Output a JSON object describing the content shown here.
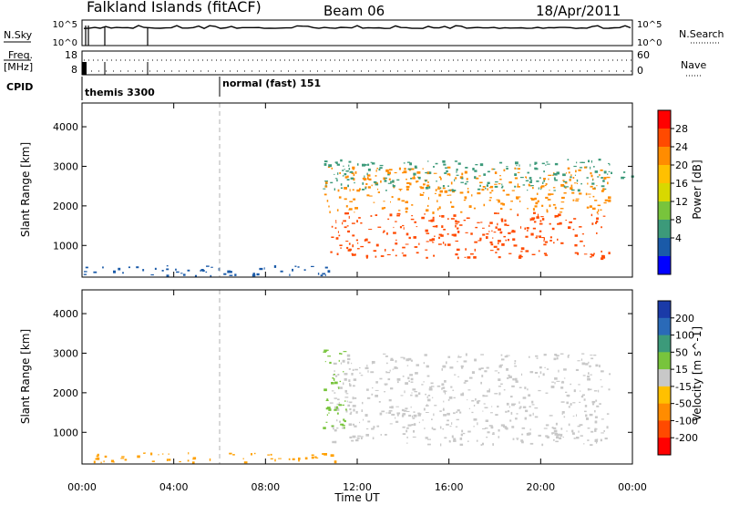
{
  "header": {
    "station": "Falkland Islands (fitACF)",
    "beam": "Beam 06",
    "date": "18/Apr/2011"
  },
  "panels": {
    "nsky_label": "N.Sky",
    "nsearch_label": "N.Search",
    "nsky_ticks": [
      "10^5",
      "10^0"
    ],
    "nsearch_ticks": [
      "10^5",
      "10^0"
    ],
    "freq_label": "Freq.",
    "freq_unit": "[MHz]",
    "freq_ticks": [
      "18",
      "8"
    ],
    "nave_label": "Nave",
    "nave_ticks": [
      "60",
      "0"
    ],
    "cpid_label": "CPID",
    "cpid_segments": [
      "themis 3300",
      "normal (fast) 151"
    ]
  },
  "chart_data": [
    {
      "type": "heatmap",
      "name": "power",
      "xlabel": "",
      "ylabel": "Slant Range [km]",
      "x_ticks": [
        "00:00",
        "04:00",
        "08:00",
        "12:00",
        "16:00",
        "20:00",
        "00:00"
      ],
      "xlim_hours": [
        0,
        24
      ],
      "ylim": [
        200,
        4600
      ],
      "y_ticks": [
        1000,
        2000,
        3000,
        4000
      ],
      "colorbar_label": "Power [dB]",
      "colorbar_ticks": [
        "28",
        "24",
        "20",
        "16",
        "12",
        "8",
        "4"
      ],
      "colorbar_colors": [
        "#ff0000",
        "#ff4a00",
        "#ff8c00",
        "#ffc000",
        "#d8d800",
        "#78c43c",
        "#3c9a7a",
        "#1a5aa8",
        "#0000ff"
      ],
      "colors": {
        "strong": "#ff4a00",
        "medium": "#ff8c00",
        "weak": "#d8d800",
        "faint": "#3c9a7a",
        "edge": "#1a5aa8"
      },
      "regions": [
        {
          "t_start": 10.8,
          "t_end": 23.0,
          "r_low": 700,
          "r_high": 1850,
          "level": "strong"
        },
        {
          "t_start": 10.5,
          "t_end": 23.0,
          "r_low": 1850,
          "r_high": 3000,
          "level": "medium"
        },
        {
          "t_start": 10.5,
          "t_end": 23.0,
          "r_low": 2400,
          "r_high": 3200,
          "level": "faint"
        },
        {
          "t_start": 23.0,
          "t_end": 24.0,
          "r_low": 2600,
          "r_high": 2900,
          "level": "faint"
        },
        {
          "t_start": 0.0,
          "t_end": 11.0,
          "r_low": 250,
          "r_high": 500,
          "level": "edge"
        }
      ]
    },
    {
      "type": "heatmap",
      "name": "velocity",
      "xlabel": "Time UT",
      "ylabel": "Slant Range [km]",
      "x_ticks": [
        "00:00",
        "04:00",
        "08:00",
        "12:00",
        "16:00",
        "20:00",
        "00:00"
      ],
      "xlim_hours": [
        0,
        24
      ],
      "ylim": [
        200,
        4600
      ],
      "y_ticks": [
        1000,
        2000,
        3000,
        4000
      ],
      "colorbar_label": "Velocity [m s^-1]",
      "colorbar_ticks": [
        "200",
        "100",
        "50",
        "15",
        "-15",
        "-50",
        "-100",
        "-200"
      ],
      "colorbar_colors": [
        "#1a3aa8",
        "#2a6ab8",
        "#3c9a7a",
        "#78c43c",
        "#c8c8c8",
        "#ffc000",
        "#ff8c00",
        "#ff4a00",
        "#ff0000"
      ],
      "colors": {
        "ground": "#c8c8c8",
        "positive": "#78c43c",
        "negative": "#ffa000"
      },
      "regions": [
        {
          "t_start": 10.8,
          "t_end": 23.0,
          "r_low": 700,
          "r_high": 3000,
          "level": "ground"
        },
        {
          "t_start": 10.5,
          "t_end": 11.5,
          "r_low": 1000,
          "r_high": 3200,
          "level": "positive"
        },
        {
          "t_start": 0.0,
          "t_end": 11.0,
          "r_low": 250,
          "r_high": 500,
          "level": "negative"
        }
      ]
    }
  ]
}
